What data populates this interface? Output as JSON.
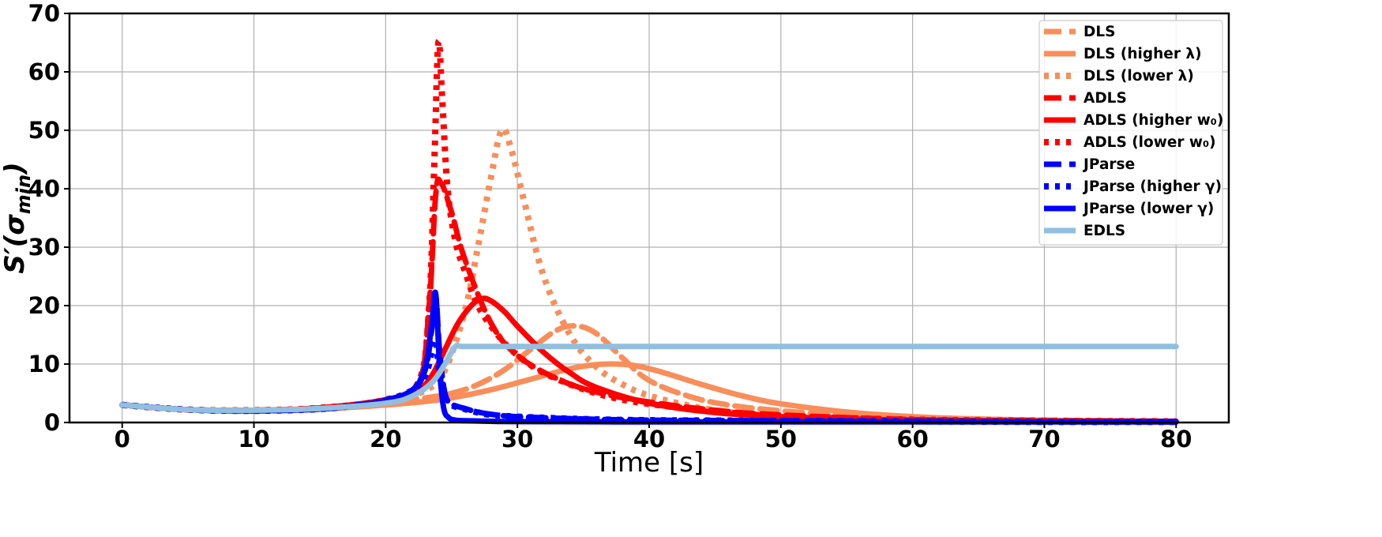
{
  "chart_data": {
    "type": "line",
    "title": "",
    "xlabel": "Time [s]",
    "ylabel": "S′(σmin)",
    "ylabel_main": "S′(σ",
    "ylabel_sub": "min",
    "ylabel_close": ")",
    "xlim": [
      -4,
      84
    ],
    "ylim": [
      0,
      70
    ],
    "xticks": [
      0,
      10,
      20,
      30,
      40,
      50,
      60,
      70,
      80
    ],
    "yticks": [
      0,
      10,
      20,
      30,
      40,
      50,
      60,
      70
    ],
    "grid": true,
    "legend_position": "top-right",
    "series": [
      {
        "name": "DLS",
        "color": "#f98e5a",
        "style": "dash",
        "x": [
          0,
          5,
          10,
          15,
          20,
          23,
          25,
          27,
          29,
          31,
          33,
          34.5,
          36,
          38,
          40,
          43,
          46,
          50,
          55,
          60,
          70,
          80
        ],
        "y": [
          3.0,
          2.2,
          2.1,
          2.5,
          3.4,
          4.2,
          5.0,
          6.5,
          9.0,
          12.5,
          15.8,
          16.5,
          15.2,
          11.0,
          7.2,
          4.5,
          3.0,
          2.0,
          1.2,
          0.7,
          0.3,
          0.2
        ]
      },
      {
        "name": "DLS (higher λ)",
        "color": "#f98e5a",
        "style": "solid",
        "x": [
          0,
          5,
          10,
          15,
          20,
          23,
          25,
          28,
          31,
          34,
          36,
          37.5,
          39,
          41,
          44,
          47,
          50,
          55,
          60,
          65,
          70,
          75,
          80
        ],
        "y": [
          3.0,
          2.2,
          2.1,
          2.3,
          3.0,
          3.6,
          4.2,
          5.6,
          7.4,
          9.2,
          9.9,
          10.0,
          9.7,
          8.6,
          6.5,
          4.6,
          3.2,
          1.8,
          1.0,
          0.6,
          0.4,
          0.3,
          0.2
        ]
      },
      {
        "name": "DLS (lower λ)",
        "color": "#f98e5a",
        "style": "dot",
        "x": [
          0,
          5,
          10,
          15,
          20,
          23,
          24.5,
          26,
          27,
          28,
          28.8,
          29.5,
          30.5,
          32,
          34,
          36,
          38,
          40,
          43,
          46,
          50,
          55,
          60,
          70,
          80
        ],
        "y": [
          3.0,
          2.2,
          2.1,
          2.5,
          3.6,
          5.5,
          9.0,
          19.0,
          30.0,
          42.0,
          50.0,
          47.0,
          38.0,
          25.0,
          15.0,
          9.5,
          6.5,
          4.6,
          2.9,
          1.8,
          1.0,
          0.6,
          0.4,
          0.2,
          0.1
        ]
      },
      {
        "name": "ADLS",
        "color": "#ff0000",
        "style": "dash",
        "x": [
          0,
          5,
          10,
          15,
          20,
          22.5,
          23.3,
          23.8,
          24.2,
          25,
          26,
          28,
          30,
          33,
          36,
          40,
          45,
          50,
          60,
          70,
          80
        ],
        "y": [
          3.0,
          2.2,
          2.1,
          2.5,
          3.9,
          6.5,
          20.0,
          39.0,
          41.0,
          36.0,
          28.0,
          17.0,
          11.5,
          7.5,
          5.2,
          3.5,
          2.1,
          1.3,
          0.5,
          0.3,
          0.2
        ]
      },
      {
        "name": "ADLS (higher w₀)",
        "color": "#ff0000",
        "style": "solid",
        "x": [
          0,
          5,
          10,
          15,
          20,
          22.5,
          23.5,
          24.5,
          25.5,
          26.5,
          27.3,
          28,
          29,
          30,
          32,
          34,
          36,
          40,
          45,
          50,
          55,
          60,
          70,
          80
        ],
        "y": [
          3.0,
          2.2,
          2.1,
          2.5,
          3.9,
          5.8,
          8.0,
          12.5,
          17.0,
          20.0,
          21.2,
          20.8,
          19.0,
          16.5,
          12.0,
          8.5,
          6.0,
          3.3,
          1.7,
          1.0,
          0.6,
          0.4,
          0.2,
          0.1
        ]
      },
      {
        "name": "ADLS (lower w₀)",
        "color": "#ff0000",
        "style": "dot",
        "x": [
          0,
          5,
          10,
          15,
          20,
          22.5,
          23.3,
          23.7,
          24.0,
          24.3,
          24.7,
          25.3,
          26,
          27,
          28.5,
          30,
          32,
          35,
          38,
          42,
          46,
          50,
          60,
          70,
          80
        ],
        "y": [
          3.0,
          2.2,
          2.1,
          2.5,
          3.9,
          7.0,
          20.0,
          45.0,
          65.0,
          55.0,
          40.0,
          31.0,
          26.0,
          20.0,
          15.0,
          11.5,
          8.5,
          5.7,
          3.9,
          2.6,
          1.7,
          1.1,
          0.5,
          0.3,
          0.2
        ]
      },
      {
        "name": "JParse",
        "color": "#0000ff",
        "style": "dash",
        "x": [
          0,
          5,
          10,
          15,
          18,
          20,
          22,
          23,
          23.5,
          23.8,
          24.1,
          24.5,
          25,
          26,
          27,
          28,
          30,
          35,
          40,
          50,
          60,
          70,
          80
        ],
        "y": [
          3.0,
          2.2,
          2.0,
          2.3,
          3.0,
          3.8,
          5.5,
          9.0,
          16.0,
          21.5,
          12.0,
          5.0,
          3.2,
          2.4,
          1.8,
          1.4,
          1.0,
          0.6,
          0.4,
          0.3,
          0.2,
          0.1,
          0.1
        ]
      },
      {
        "name": "JParse (higher γ)",
        "color": "#0000ff",
        "style": "dot",
        "x": [
          0,
          5,
          10,
          15,
          18,
          20,
          22,
          23,
          23.5,
          23.8,
          24.1,
          24.5,
          25,
          26,
          27,
          28,
          30,
          35,
          40,
          50,
          60,
          70,
          80
        ],
        "y": [
          3.0,
          2.2,
          2.0,
          2.3,
          3.0,
          3.8,
          5.5,
          8.0,
          12.0,
          14.0,
          8.0,
          4.5,
          3.0,
          2.3,
          1.7,
          1.3,
          1.0,
          0.6,
          0.4,
          0.3,
          0.2,
          0.1,
          0.1
        ]
      },
      {
        "name": "JParse (lower γ)",
        "color": "#0000ff",
        "style": "solid",
        "x": [
          0,
          5,
          10,
          15,
          18,
          20,
          22,
          23,
          23.5,
          23.8,
          24.1,
          24.4,
          24.8,
          25.3,
          26,
          28,
          30,
          40,
          50,
          60,
          70,
          80
        ],
        "y": [
          3.0,
          2.2,
          2.0,
          2.3,
          3.0,
          3.8,
          5.5,
          9.5,
          17.0,
          22.0,
          9.0,
          2.5,
          0.8,
          0.4,
          0.3,
          0.2,
          0.15,
          0.1,
          0.1,
          0.1,
          0.1,
          0.1
        ]
      },
      {
        "name": "EDLS",
        "color": "#92bfdf",
        "style": "solid",
        "x": [
          0,
          5,
          10,
          15,
          20,
          22,
          23.5,
          24.5,
          25.3,
          26,
          30,
          40,
          50,
          60,
          70,
          80
        ],
        "y": [
          3.0,
          2.2,
          2.1,
          2.4,
          3.3,
          4.5,
          6.8,
          10.0,
          13.0,
          13.0,
          13.0,
          13.0,
          13.0,
          13.0,
          13.0,
          13.0
        ]
      }
    ]
  }
}
